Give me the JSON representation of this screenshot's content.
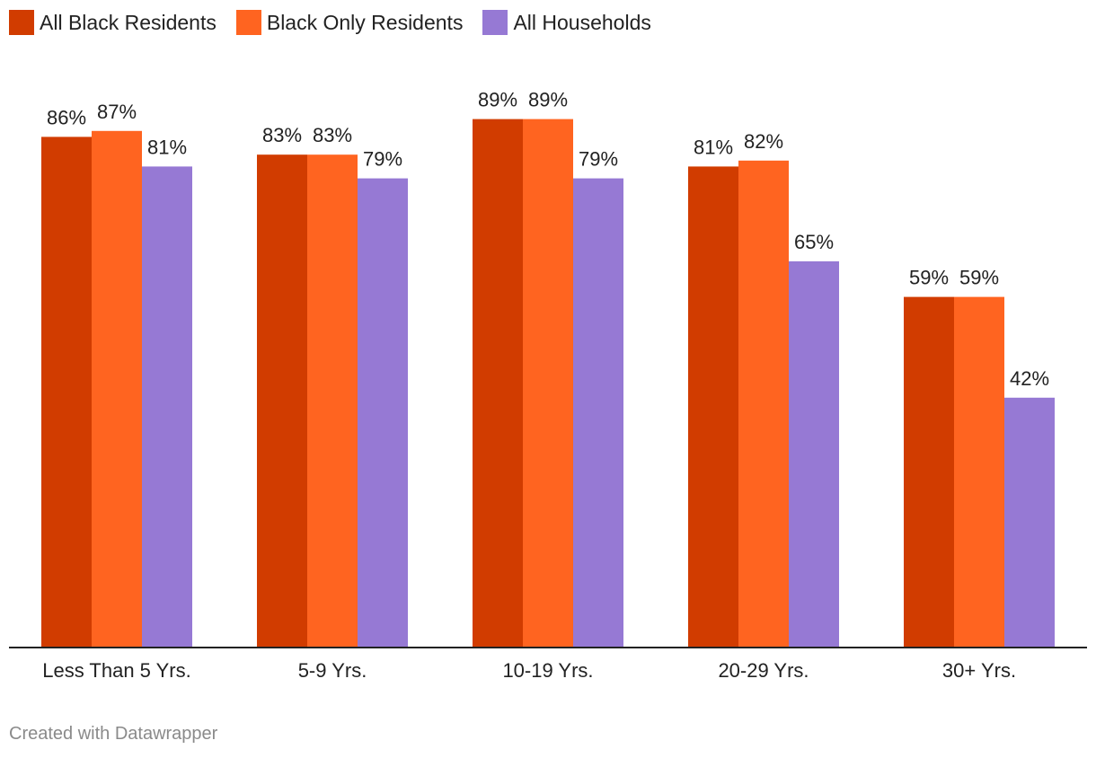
{
  "chart_data": {
    "type": "bar",
    "categories": [
      "Less Than 5 Yrs.",
      "5-9 Yrs.",
      "10-19 Yrs.",
      "20-29 Yrs.",
      "30+ Yrs."
    ],
    "series": [
      {
        "name": "All Black Residents",
        "values": [
          86,
          83,
          89,
          81,
          59
        ],
        "labels": [
          "86%",
          "83%",
          "89%",
          "81%",
          "59%"
        ],
        "color": "#d13c00"
      },
      {
        "name": "Black Only Residents",
        "values": [
          87,
          83,
          89,
          82,
          59
        ],
        "labels": [
          "87%",
          "83%",
          "89%",
          "82%",
          "59%"
        ],
        "color": "#ff6420"
      },
      {
        "name": "All Households",
        "values": [
          81,
          79,
          79,
          65,
          42
        ],
        "labels": [
          "81%",
          "79%",
          "79%",
          "65%",
          "42%"
        ],
        "color": "#9679d4"
      }
    ],
    "title": "",
    "xlabel": "",
    "ylabel": "",
    "ylim": [
      0,
      100
    ],
    "grid": false,
    "legend_position": "top-left",
    "value_suffix": "%"
  },
  "credit": "Created with Datawrapper"
}
